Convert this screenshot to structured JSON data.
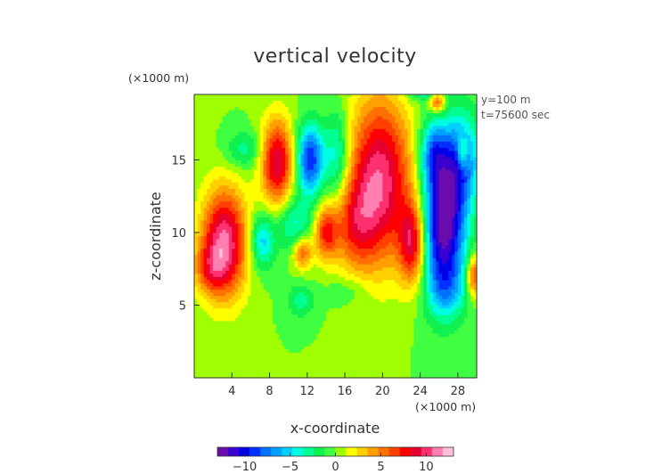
{
  "chart_data": {
    "type": "heatmap",
    "title": "vertical velocity",
    "xlabel": "x-coordinate",
    "ylabel": "z-coordinate",
    "x_unit": "(×1000 m)",
    "y_unit": "(×1000 m)",
    "info_lines": [
      "y=100 m",
      "t=75600 sec"
    ],
    "xlim": [
      0,
      30
    ],
    "ylim": [
      0,
      19.5
    ],
    "x_ticks": [
      4,
      8,
      12,
      16,
      20,
      24,
      28
    ],
    "y_ticks": [
      5,
      10,
      15
    ],
    "colorbar": {
      "range": [
        -13,
        13
      ],
      "ticks": [
        -10,
        -5,
        0,
        5,
        10
      ],
      "tick_labels": [
        "−10",
        "−5",
        "0",
        "5",
        "10"
      ],
      "colors": [
        "#6a0dad",
        "#3a00d0",
        "#0000e6",
        "#0030ff",
        "#0070ff",
        "#00a0ff",
        "#00d0ff",
        "#00ffe0",
        "#00ff90",
        "#10f050",
        "#40ff40",
        "#a0ff00",
        "#ffff00",
        "#ffd000",
        "#ffa000",
        "#ff7000",
        "#ff4000",
        "#ff0000",
        "#e60030",
        "#ff3070",
        "#ff80b0",
        "#ffc0d8"
      ]
    },
    "features": [
      {
        "x": 3.2,
        "y": 9.3,
        "sx": 1.7,
        "sy": 2.6,
        "a": 11.0
      },
      {
        "x": 1.6,
        "y": 7.5,
        "sx": 1.2,
        "sy": 1.2,
        "a": 4.0
      },
      {
        "x": 8.8,
        "y": 14.8,
        "sx": 1.2,
        "sy": 2.1,
        "a": 9.5
      },
      {
        "x": 12.3,
        "y": 15.0,
        "sx": 1.0,
        "sy": 1.7,
        "a": -9.5
      },
      {
        "x": 19.7,
        "y": 13.6,
        "sx": 2.4,
        "sy": 4.0,
        "a": 10.5
      },
      {
        "x": 17.0,
        "y": 10.5,
        "sx": 1.6,
        "sy": 2.2,
        "a": 5.0
      },
      {
        "x": 14.0,
        "y": 10.0,
        "sx": 0.9,
        "sy": 1.3,
        "a": 7.0
      },
      {
        "x": 11.5,
        "y": 8.6,
        "sx": 0.7,
        "sy": 0.8,
        "a": 6.0
      },
      {
        "x": 23.2,
        "y": 9.3,
        "sx": 1.0,
        "sy": 2.0,
        "a": 8.5
      },
      {
        "x": 26.5,
        "y": 10.5,
        "sx": 1.6,
        "sy": 3.4,
        "a": -13.0
      },
      {
        "x": 28.4,
        "y": 15.0,
        "sx": 1.4,
        "sy": 2.3,
        "a": -7.0
      },
      {
        "x": 25.4,
        "y": 15.5,
        "sx": 1.0,
        "sy": 1.6,
        "a": -6.0
      },
      {
        "x": 28.5,
        "y": 15.5,
        "sx": 0.4,
        "sy": 0.8,
        "a": 5.0
      },
      {
        "x": 25.8,
        "y": 19.0,
        "sx": 0.6,
        "sy": 0.5,
        "a": 7.0
      },
      {
        "x": 24.5,
        "y": 20.0,
        "sx": 1.5,
        "sy": 0.6,
        "a": -5.0
      },
      {
        "x": 29.7,
        "y": 7.0,
        "sx": 0.5,
        "sy": 1.0,
        "a": 7.0
      },
      {
        "x": 7.2,
        "y": 9.4,
        "sx": 0.9,
        "sy": 1.3,
        "a": -5.5
      },
      {
        "x": 10.6,
        "y": 10.6,
        "sx": 1.4,
        "sy": 1.3,
        "a": -4.0
      },
      {
        "x": 15.2,
        "y": 15.2,
        "sx": 1.0,
        "sy": 2.2,
        "a": -5.0
      },
      {
        "x": 5.3,
        "y": 15.7,
        "sx": 1.4,
        "sy": 0.9,
        "a": -3.0
      },
      {
        "x": 11.3,
        "y": 5.3,
        "sx": 1.0,
        "sy": 0.8,
        "a": -3.0
      },
      {
        "x": 16.5,
        "y": 6.0,
        "sx": 1.6,
        "sy": 0.7,
        "a": -1.5
      },
      {
        "x": 26.8,
        "y": 6.0,
        "sx": 1.5,
        "sy": 1.3,
        "a": -3.0
      }
    ]
  }
}
